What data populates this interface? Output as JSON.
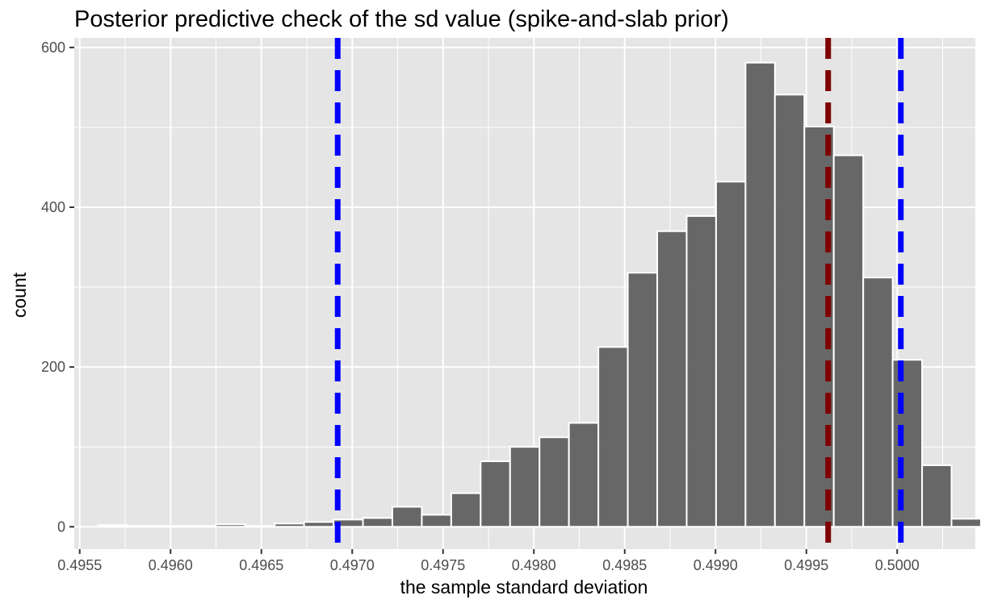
{
  "chart_data": {
    "type": "bar",
    "title": "Posterior predictive check of the sd value (spike-and-slab prior)",
    "xlabel": "the sample standard deviation",
    "ylabel": "count",
    "xlim": [
      0.49547,
      0.50043
    ],
    "ylim": [
      -28,
      612
    ],
    "x_ticks": [
      0.4955,
      0.496,
      0.4965,
      0.497,
      0.4975,
      0.498,
      0.4985,
      0.499,
      0.4995,
      0.5
    ],
    "x_tick_labels": [
      "0.4955",
      "0.4960",
      "0.4965",
      "0.4970",
      "0.4975",
      "0.4980",
      "0.4985",
      "0.4990",
      "0.4995",
      "0.5000"
    ],
    "y_ticks": [
      0,
      200,
      400,
      600
    ],
    "y_tick_labels": [
      "0",
      "200",
      "400",
      "600"
    ],
    "bin_width": 0.000162,
    "bin_start": 0.495601,
    "values": [
      2,
      1,
      1,
      1,
      3,
      1,
      4,
      6,
      9,
      11,
      25,
      15,
      42,
      82,
      100,
      112,
      130,
      225,
      318,
      370,
      389,
      432,
      581,
      541,
      501,
      465,
      312,
      209,
      77,
      10
    ],
    "reference_lines": [
      {
        "x": 0.49692,
        "color": "#0000ff",
        "dash": "dashed"
      },
      {
        "x": 0.49962,
        "color": "#7f0000",
        "dash": "dashed"
      },
      {
        "x": 0.50002,
        "color": "#0000ff",
        "dash": "dashed"
      }
    ],
    "grid": true,
    "legend": "none",
    "colors": {
      "panel": "#e5e5e5",
      "grid": "#ffffff",
      "bar_fill": "#595959",
      "bar_stroke": "#ffffff"
    }
  }
}
